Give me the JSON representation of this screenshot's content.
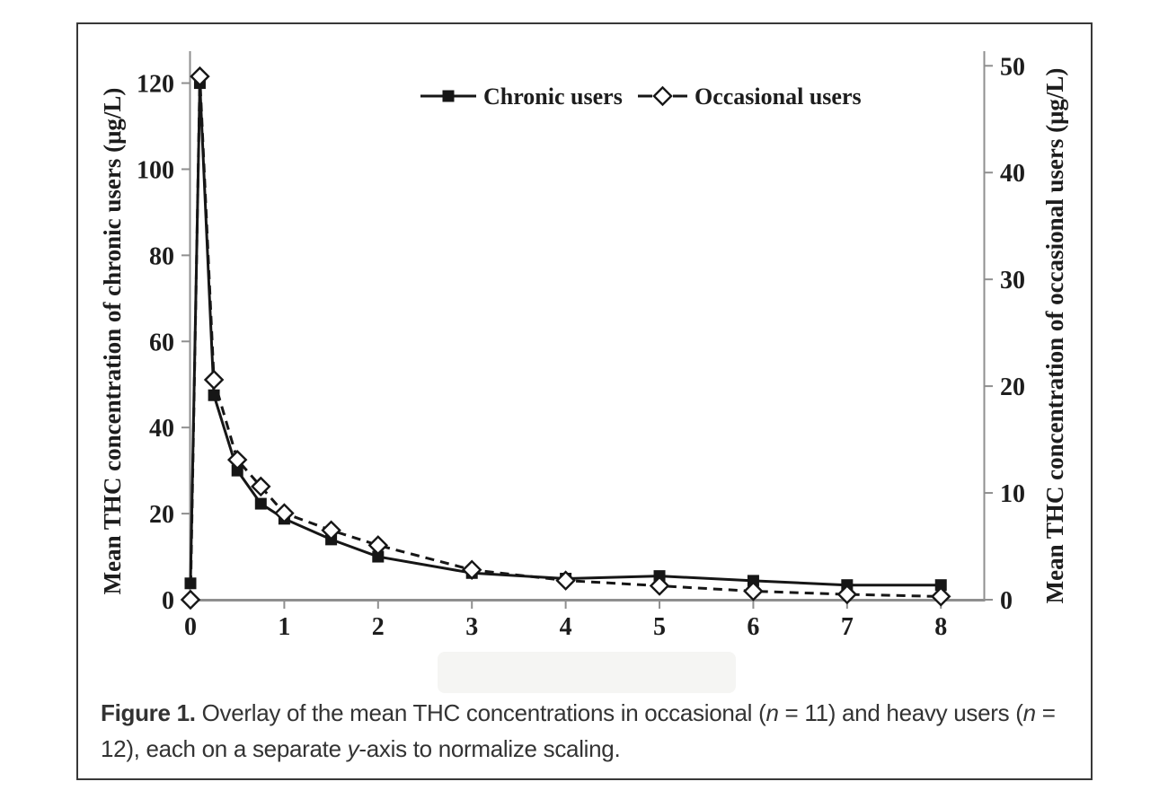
{
  "figure": {
    "caption_lines": [
      [
        {
          "t": "Figure 1.",
          "b": true
        },
        {
          "t": " Overlay of the mean THC concentrations in occasional ("
        },
        {
          "t": "n",
          "i": true
        },
        {
          "t": " = 11) and heavy users ("
        },
        {
          "t": "n",
          "i": true
        },
        {
          "t": " ="
        }
      ],
      [
        {
          "t": "12), each on a separate "
        },
        {
          "t": "y",
          "i": true
        },
        {
          "t": "-axis to normalize scaling."
        }
      ]
    ]
  },
  "chart_data": {
    "type": "line",
    "title": "",
    "x": [
      0,
      0.1,
      0.25,
      0.5,
      0.75,
      1,
      1.5,
      2,
      3,
      4,
      5,
      6,
      7,
      8
    ],
    "series": [
      {
        "name": "Chronic users",
        "axis": "left",
        "line": "solid",
        "marker": "filled-square",
        "values": [
          3.8,
          120,
          47.5,
          30,
          22.3,
          18.8,
          14,
          10,
          6.2,
          4.9,
          5.5,
          4.4,
          3.4,
          3.4
        ]
      },
      {
        "name": "Occasional users",
        "axis": "right",
        "line": "dashed",
        "marker": "open-diamond",
        "values": [
          0,
          49,
          20.6,
          13.1,
          10.6,
          8.1,
          6.5,
          5.1,
          2.8,
          1.8,
          1.3,
          0.8,
          0.5,
          0.3
        ]
      }
    ],
    "x_axis": {
      "label": "",
      "ticks": [
        0,
        1,
        2,
        3,
        4,
        5,
        6,
        7,
        8
      ],
      "range": [
        0,
        8.4
      ]
    },
    "left_axis": {
      "label": "Mean THC concentration of chronic users (μg/L)",
      "ticks": [
        0,
        20,
        40,
        60,
        80,
        100,
        120
      ],
      "range": [
        0,
        127
      ]
    },
    "right_axis": {
      "label": "Mean THC concentration of occasional users (μg/L)",
      "ticks": [
        0,
        10,
        20,
        30,
        40,
        50
      ],
      "range": [
        0,
        51.2
      ]
    },
    "legend": {
      "position": "top-center",
      "entries": [
        "Chronic users",
        "Occasional users"
      ]
    },
    "grid": false,
    "colors": {
      "series": "#161616",
      "axis": "#8f8f8f",
      "text": "#1d1d1d",
      "caption": "#333333"
    }
  }
}
